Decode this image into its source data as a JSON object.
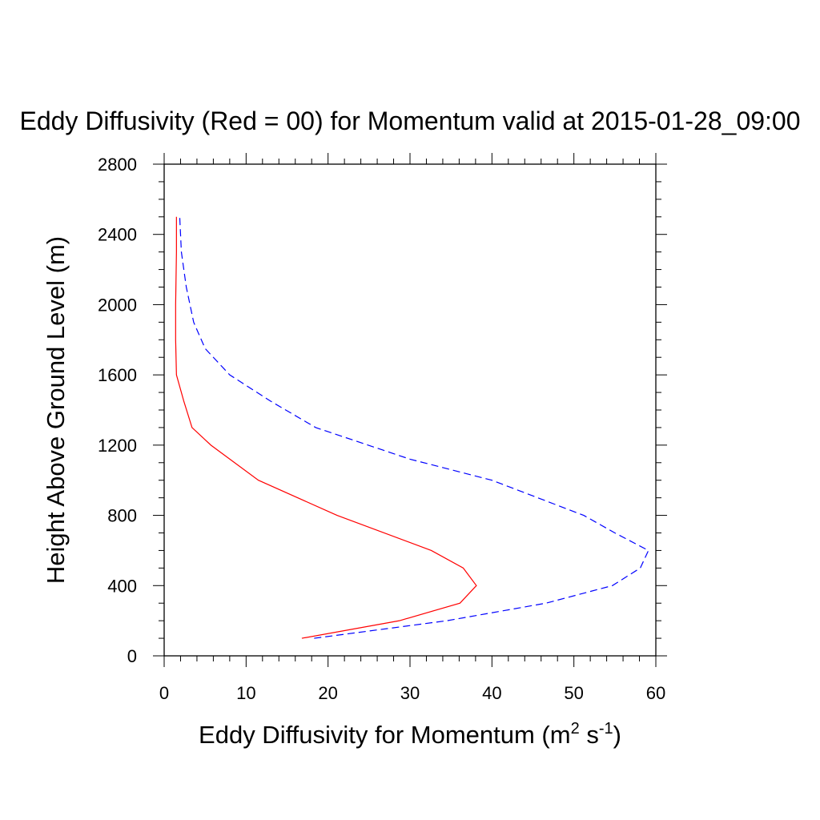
{
  "chart_data": {
    "type": "line",
    "title": "Eddy Diffusivity (Red = 00) for Momentum valid at 2015-01-28_09:00",
    "xlabel": "Eddy Diffusivity for Momentum (m",
    "xlabel_sup1": "2",
    "xlabel_mid": " s",
    "xlabel_sup2": "-1",
    "xlabel_end": ")",
    "ylabel": "Height Above Ground Level (m)",
    "xlim": [
      0,
      60
    ],
    "ylim": [
      0,
      2800
    ],
    "xticks": [
      "0",
      "10",
      "20",
      "30",
      "40",
      "50",
      "60"
    ],
    "yticks": [
      "0",
      "400",
      "800",
      "1200",
      "1600",
      "2000",
      "2400",
      "2800"
    ],
    "grid": false,
    "series": [
      {
        "color": "#ff0000",
        "style": "solid",
        "x": [
          16.8,
          28.7,
          36.1,
          38.1,
          36.5,
          32.6,
          21.1,
          11.5,
          5.7,
          3.4,
          2.4,
          1.5,
          1.4,
          1.4,
          1.5,
          1.5
        ],
        "y": [
          100,
          200,
          300,
          400,
          500,
          600,
          800,
          1000,
          1200,
          1300,
          1450,
          1600,
          1800,
          2000,
          2300,
          2500
        ]
      },
      {
        "color": "#0000ff",
        "style": "dashed",
        "x": [
          18.3,
          34.5,
          46.6,
          54.7,
          58.1,
          59.1,
          55.0,
          51.2,
          40.0,
          30.0,
          18.5,
          13.0,
          8.0,
          5.0,
          3.6,
          2.7,
          2.1,
          1.9
        ],
        "y": [
          100,
          200,
          300,
          400,
          500,
          600,
          700,
          800,
          1000,
          1120,
          1300,
          1450,
          1600,
          1750,
          1900,
          2100,
          2300,
          2500
        ]
      }
    ]
  }
}
